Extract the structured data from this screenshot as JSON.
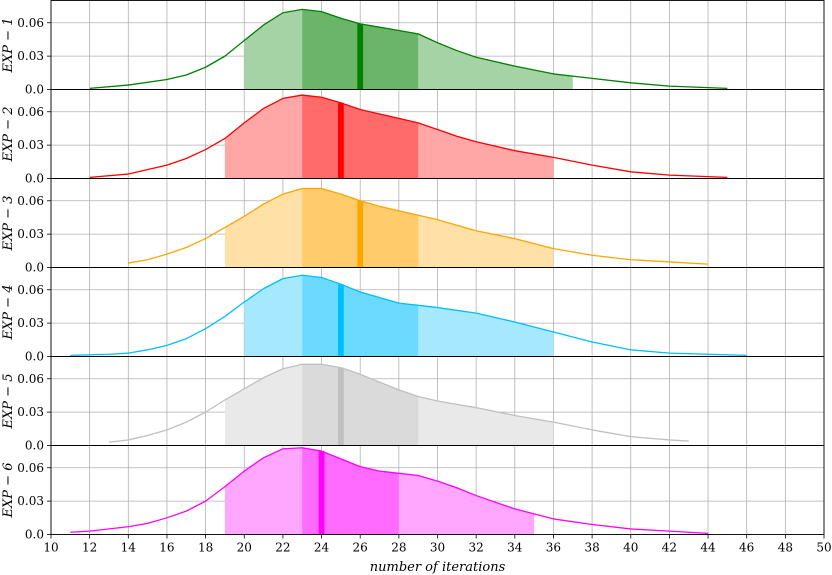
{
  "chart_data": {
    "type": "area",
    "xlabel": "number of iterations",
    "xlim": [
      10,
      50
    ],
    "x_ticks": [
      10,
      12,
      14,
      16,
      18,
      20,
      22,
      24,
      26,
      28,
      30,
      32,
      34,
      36,
      38,
      40,
      42,
      44,
      46,
      48,
      50
    ],
    "ylim": [
      0.0,
      0.08
    ],
    "y_ticks": [
      0.0,
      0.03,
      0.06
    ],
    "y_tick_labels": [
      "0.0",
      "0.03",
      "0.06"
    ],
    "grid": true,
    "panels": [
      {
        "ylabel": "EXP − 1",
        "color": "#008000",
        "light": [
          20,
          37
        ],
        "dark": [
          23,
          29
        ],
        "median": 26,
        "x": [
          12,
          14,
          16,
          17,
          18,
          19,
          20,
          21,
          22,
          23,
          24,
          25,
          26,
          27,
          28,
          29,
          30,
          31,
          32,
          34,
          36,
          38,
          40,
          42,
          45
        ],
        "y": [
          0.001,
          0.004,
          0.009,
          0.013,
          0.02,
          0.03,
          0.044,
          0.058,
          0.069,
          0.072,
          0.07,
          0.064,
          0.059,
          0.056,
          0.053,
          0.05,
          0.042,
          0.035,
          0.029,
          0.021,
          0.014,
          0.01,
          0.006,
          0.003,
          0.001
        ]
      },
      {
        "ylabel": "EXP − 2",
        "color": "#ff0000",
        "light": [
          19,
          36
        ],
        "dark": [
          23,
          29
        ],
        "median": 25,
        "x": [
          12,
          14,
          16,
          17,
          18,
          19,
          20,
          21,
          22,
          23,
          24,
          25,
          26,
          27,
          28,
          29,
          30,
          31,
          32,
          34,
          36,
          38,
          40,
          42,
          45
        ],
        "y": [
          0.001,
          0.004,
          0.012,
          0.018,
          0.026,
          0.036,
          0.05,
          0.063,
          0.072,
          0.075,
          0.073,
          0.068,
          0.062,
          0.058,
          0.054,
          0.05,
          0.044,
          0.038,
          0.033,
          0.025,
          0.019,
          0.012,
          0.006,
          0.003,
          0.001
        ]
      },
      {
        "ylabel": "EXP − 3",
        "color": "#ffa500",
        "light": [
          19,
          36
        ],
        "dark": [
          23,
          29
        ],
        "median": 26,
        "x": [
          14,
          15,
          16,
          17,
          18,
          19,
          20,
          21,
          22,
          23,
          24,
          25,
          26,
          27,
          28,
          29,
          30,
          31,
          32,
          34,
          36,
          38,
          40,
          42,
          44
        ],
        "y": [
          0.004,
          0.007,
          0.012,
          0.018,
          0.026,
          0.036,
          0.046,
          0.057,
          0.066,
          0.071,
          0.071,
          0.066,
          0.06,
          0.055,
          0.051,
          0.047,
          0.043,
          0.038,
          0.033,
          0.026,
          0.017,
          0.011,
          0.007,
          0.005,
          0.003
        ]
      },
      {
        "ylabel": "EXP − 4",
        "color": "#00bfff",
        "light": [
          20,
          36
        ],
        "dark": [
          23,
          29
        ],
        "median": 25,
        "x": [
          11,
          13,
          14,
          15,
          16,
          17,
          18,
          19,
          20,
          21,
          22,
          23,
          24,
          25,
          26,
          27,
          28,
          29,
          30,
          32,
          34,
          36,
          38,
          40,
          42,
          44,
          46
        ],
        "y": [
          0.001,
          0.002,
          0.003,
          0.006,
          0.01,
          0.016,
          0.025,
          0.036,
          0.049,
          0.061,
          0.07,
          0.073,
          0.071,
          0.065,
          0.058,
          0.053,
          0.048,
          0.046,
          0.044,
          0.039,
          0.031,
          0.022,
          0.013,
          0.006,
          0.003,
          0.002,
          0.001
        ]
      },
      {
        "ylabel": "EXP − 5",
        "color": "#c0c0c0",
        "light": [
          19,
          36
        ],
        "dark": [
          23,
          29
        ],
        "median": 25,
        "x": [
          13,
          14,
          15,
          16,
          17,
          18,
          19,
          20,
          21,
          22,
          23,
          24,
          25,
          26,
          27,
          28,
          29,
          30,
          32,
          34,
          36,
          38,
          40,
          42,
          43
        ],
        "y": [
          0.003,
          0.005,
          0.009,
          0.014,
          0.021,
          0.03,
          0.041,
          0.051,
          0.061,
          0.069,
          0.073,
          0.073,
          0.07,
          0.064,
          0.057,
          0.05,
          0.044,
          0.04,
          0.034,
          0.027,
          0.021,
          0.014,
          0.008,
          0.005,
          0.004
        ]
      },
      {
        "ylabel": "EXP − 6",
        "color": "#ff00ff",
        "light": [
          19,
          35
        ],
        "dark": [
          23,
          28
        ],
        "median": 24,
        "x": [
          11,
          12,
          14,
          15,
          16,
          17,
          18,
          19,
          20,
          21,
          22,
          23,
          24,
          25,
          26,
          27,
          28,
          29,
          30,
          31,
          32,
          34,
          36,
          38,
          40,
          42,
          44
        ],
        "y": [
          0.002,
          0.003,
          0.007,
          0.01,
          0.015,
          0.021,
          0.03,
          0.043,
          0.057,
          0.069,
          0.077,
          0.078,
          0.075,
          0.068,
          0.061,
          0.057,
          0.055,
          0.053,
          0.048,
          0.042,
          0.035,
          0.023,
          0.014,
          0.009,
          0.005,
          0.003,
          0.001
        ]
      }
    ]
  }
}
